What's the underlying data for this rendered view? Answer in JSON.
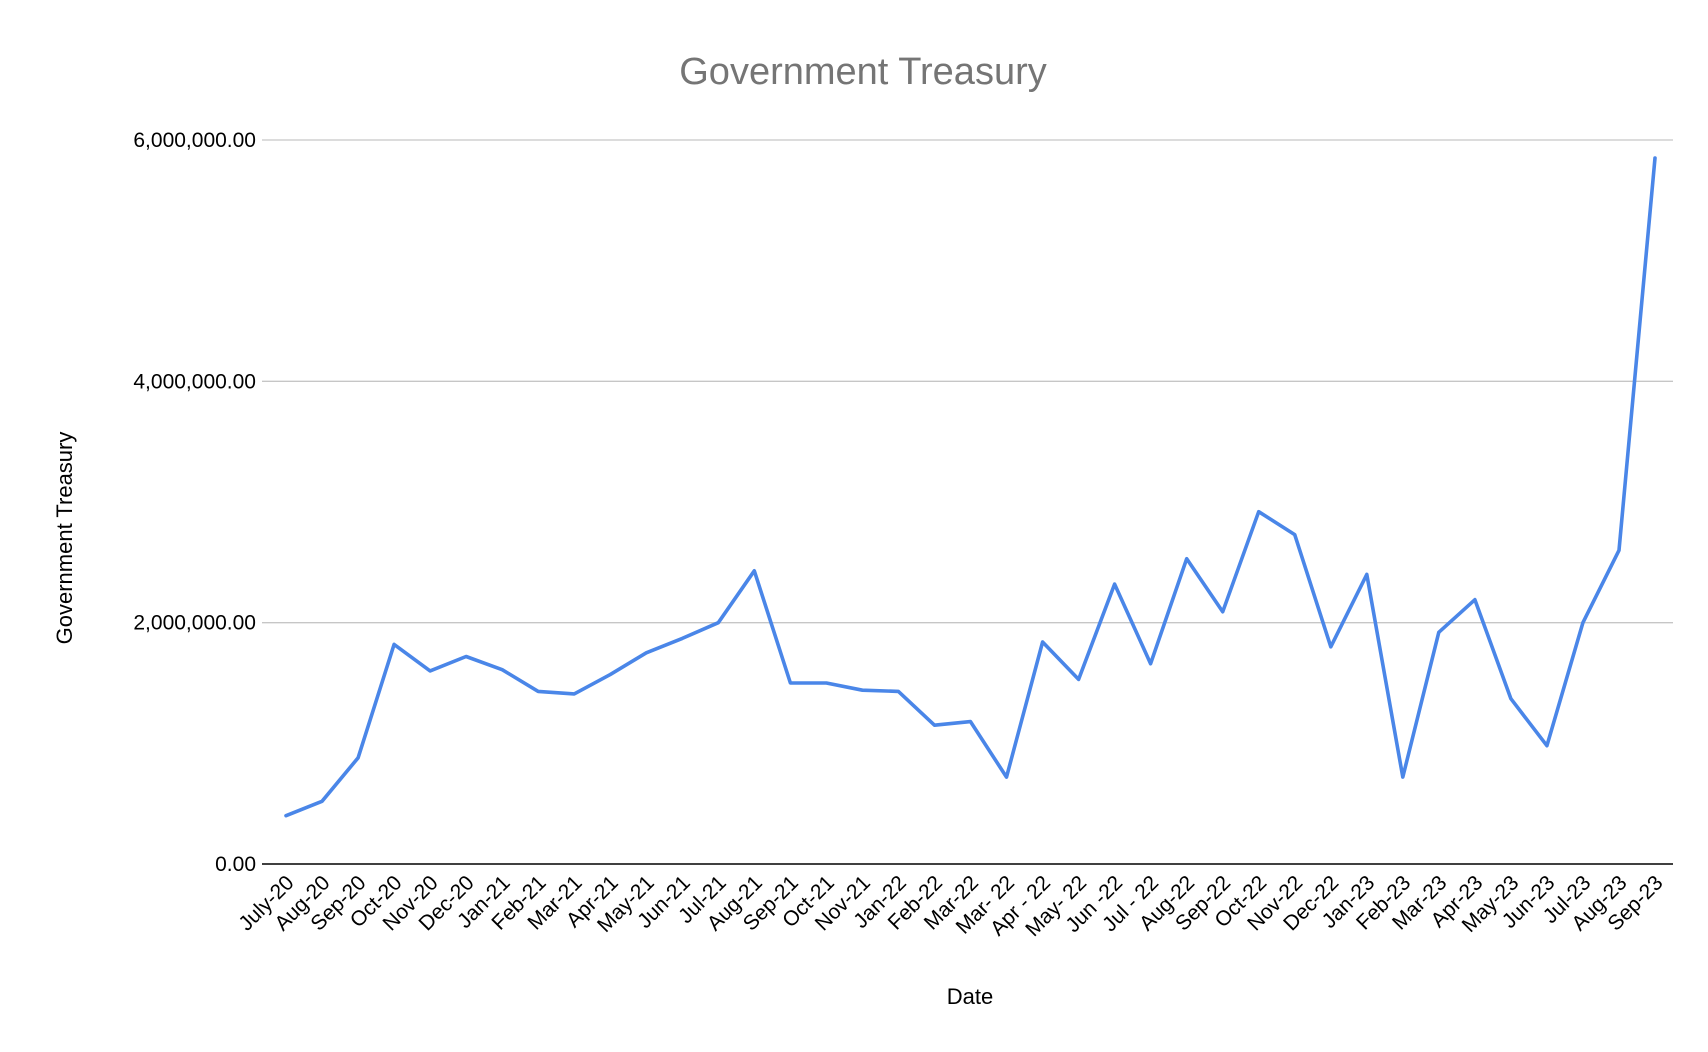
{
  "chart_data": {
    "type": "line",
    "title": "Government Treasury",
    "xlabel": "Date",
    "ylabel": "Government Treasury",
    "ylim": [
      0,
      6000000
    ],
    "yticks": [
      {
        "value": 0,
        "label": "0.00"
      },
      {
        "value": 2000000,
        "label": "2,000,000.00"
      },
      {
        "value": 4000000,
        "label": "4,000,000.00"
      },
      {
        "value": 6000000,
        "label": "6,000,000.00"
      }
    ],
    "grid": true,
    "legend": "none",
    "color": "#4a86e8",
    "categories": [
      "July-20",
      "Aug-20",
      "Sep-20",
      "Oct-20",
      "Nov-20",
      "Dec-20",
      "Jan-21",
      "Feb-21",
      "Mar-21",
      "Apr-21",
      "May-21",
      "Jun-21",
      "Jul-21",
      "Aug-21",
      "Sep-21",
      "Oct-21",
      "Nov-21",
      "Jan-22",
      "Feb-22",
      "Mar-22",
      "Mar- 22",
      "Apr - 22",
      "May- 22",
      "Jun -22",
      "Jul - 22",
      "Aug-22",
      "Sep-22",
      "Oct-22",
      "Nov-22",
      "Dec-22",
      "Jan-23",
      "Feb-23",
      "Mar-23",
      "Apr-23",
      "May-23",
      "Jun-23",
      "Jul-23",
      "Aug-23",
      "Sep-23"
    ],
    "values": [
      400000,
      520000,
      880000,
      1820000,
      1600000,
      1720000,
      1610000,
      1430000,
      1410000,
      1570000,
      1750000,
      1870000,
      2000000,
      2430000,
      1500000,
      1500000,
      1440000,
      1430000,
      1150000,
      1180000,
      720000,
      1840000,
      1530000,
      2320000,
      1660000,
      2530000,
      2090000,
      2920000,
      2730000,
      1800000,
      2400000,
      720000,
      1920000,
      2190000,
      1370000,
      980000,
      2000000,
      2600000,
      5850000
    ]
  }
}
